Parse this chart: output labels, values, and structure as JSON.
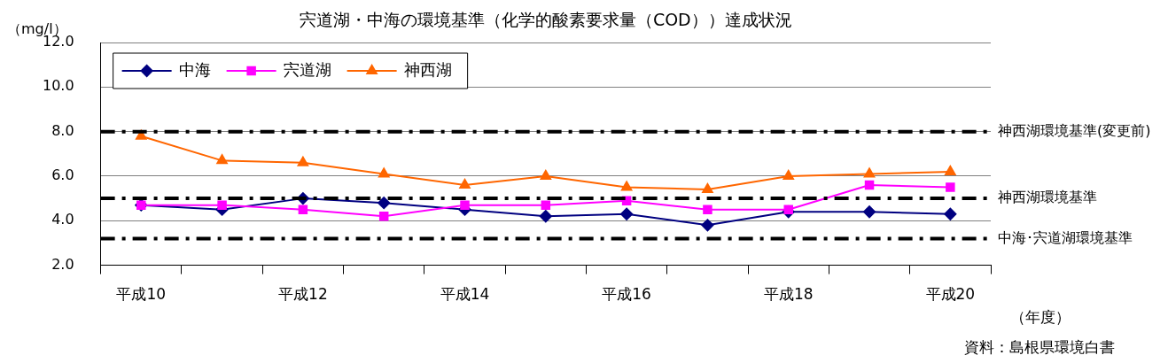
{
  "chart_data": {
    "type": "line",
    "title": "宍道湖・中海の環境基準（化学的酸素要求量（COD））達成状況",
    "ylabel": "（mg/l）",
    "xlabel": "（年度）",
    "categories": [
      "平成10",
      null,
      "平成12",
      null,
      "平成14",
      null,
      "平成16",
      null,
      "平成18",
      null,
      "平成20"
    ],
    "series": [
      {
        "name": "中海",
        "color": "#000080",
        "marker": "diamond",
        "values": [
          4.7,
          4.5,
          5.0,
          4.8,
          4.5,
          4.2,
          4.3,
          3.8,
          4.4,
          4.4,
          4.3
        ]
      },
      {
        "name": "宍道湖",
        "color": "#ff00ff",
        "marker": "square",
        "values": [
          4.7,
          4.7,
          4.5,
          4.2,
          4.7,
          4.7,
          4.9,
          4.5,
          4.5,
          5.6,
          5.5
        ]
      },
      {
        "name": "神西湖",
        "color": "#ff6600",
        "marker": "triangle",
        "values": [
          7.8,
          6.7,
          6.6,
          6.1,
          5.6,
          6.0,
          5.5,
          5.4,
          6.0,
          6.1,
          6.2
        ]
      }
    ],
    "ylim": [
      2,
      12
    ],
    "yticks": [
      {
        "value": 2,
        "label": "2.0"
      },
      {
        "value": 4,
        "label": "4.0"
      },
      {
        "value": 6,
        "label": "6.0"
      },
      {
        "value": 8,
        "label": "8.0"
      },
      {
        "value": 10,
        "label": "10.0"
      },
      {
        "value": 12,
        "label": "12.0"
      }
    ],
    "grid": "y",
    "legend": "top left",
    "ref_lines": [
      {
        "axis": "y",
        "value": 8.0,
        "label": "神西湖環境基準(変更前)",
        "color": "#000000",
        "line_style": "dashed"
      },
      {
        "axis": "y",
        "value": 5.0,
        "label": "神西湖環境基準",
        "color": "#000000",
        "line_style": "dashed"
      },
      {
        "axis": "y",
        "value": 3.2,
        "label": "中海･宍道湖環境基準",
        "color": "#000000",
        "line_style": "dashed"
      }
    ],
    "annotations": [
      "資料：島根県環境白書"
    ]
  }
}
